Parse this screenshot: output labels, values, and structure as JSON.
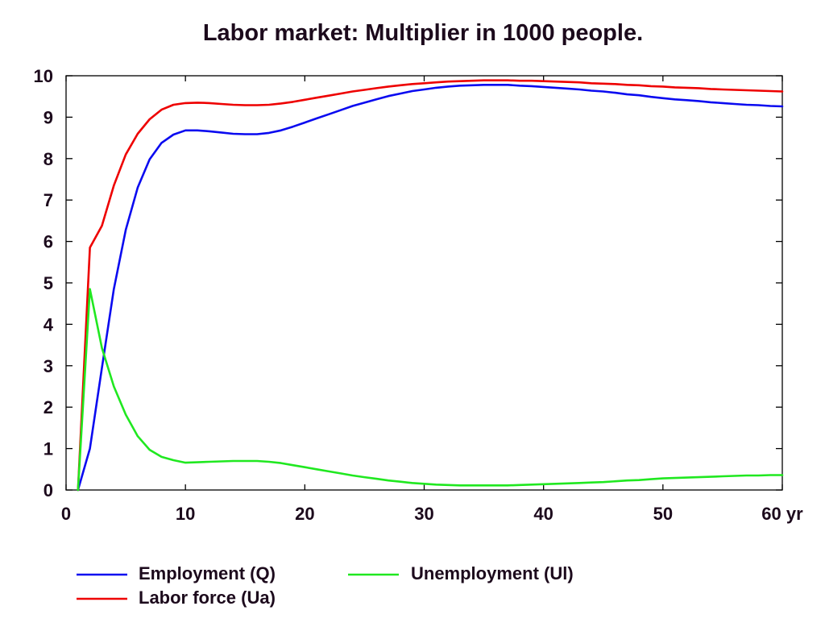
{
  "chart_data": {
    "type": "line",
    "title": "Labor market: Multiplier in 1000 people.",
    "xlabel": "",
    "ylabel": "",
    "xlim": [
      0,
      60
    ],
    "ylim": [
      0,
      10
    ],
    "xticks": [
      0,
      10,
      20,
      30,
      40,
      50,
      60
    ],
    "xtick_labels": [
      "0",
      "10",
      "20",
      "30",
      "40",
      "50",
      "60 yr"
    ],
    "yticks": [
      0,
      1,
      2,
      3,
      4,
      5,
      6,
      7,
      8,
      9,
      10
    ],
    "grid": false,
    "legend_position": "bottom",
    "x": [
      1,
      2,
      3,
      4,
      5,
      6,
      7,
      8,
      9,
      10,
      11,
      12,
      13,
      14,
      15,
      16,
      17,
      18,
      19,
      20,
      21,
      22,
      23,
      24,
      25,
      26,
      27,
      28,
      29,
      30,
      31,
      32,
      33,
      34,
      35,
      36,
      37,
      38,
      39,
      40,
      41,
      42,
      43,
      44,
      45,
      46,
      47,
      48,
      49,
      50,
      51,
      52,
      53,
      54,
      55,
      56,
      57,
      58,
      59,
      60
    ],
    "series": [
      {
        "name": "Employment (Q)",
        "color": "#0a0af0",
        "values": [
          0,
          1.0,
          2.95,
          4.85,
          6.28,
          7.3,
          7.98,
          8.38,
          8.58,
          8.68,
          8.68,
          8.66,
          8.63,
          8.6,
          8.59,
          8.59,
          8.62,
          8.68,
          8.77,
          8.87,
          8.97,
          9.07,
          9.17,
          9.27,
          9.35,
          9.43,
          9.51,
          9.57,
          9.63,
          9.67,
          9.71,
          9.74,
          9.76,
          9.77,
          9.78,
          9.78,
          9.78,
          9.76,
          9.75,
          9.73,
          9.71,
          9.69,
          9.67,
          9.64,
          9.62,
          9.59,
          9.55,
          9.53,
          9.49,
          9.46,
          9.43,
          9.41,
          9.39,
          9.36,
          9.34,
          9.32,
          9.3,
          9.29,
          9.27,
          9.26
        ]
      },
      {
        "name": "Labor force (Ua)",
        "color": "#ee0000",
        "values": [
          0,
          5.85,
          6.38,
          7.35,
          8.1,
          8.6,
          8.95,
          9.18,
          9.3,
          9.34,
          9.35,
          9.34,
          9.32,
          9.3,
          9.29,
          9.29,
          9.3,
          9.33,
          9.37,
          9.42,
          9.47,
          9.52,
          9.57,
          9.62,
          9.66,
          9.7,
          9.74,
          9.77,
          9.8,
          9.82,
          9.84,
          9.86,
          9.87,
          9.88,
          9.89,
          9.89,
          9.89,
          9.88,
          9.88,
          9.87,
          9.86,
          9.85,
          9.84,
          9.82,
          9.81,
          9.8,
          9.78,
          9.77,
          9.75,
          9.74,
          9.72,
          9.71,
          9.7,
          9.68,
          9.67,
          9.66,
          9.65,
          9.64,
          9.63,
          9.62
        ]
      },
      {
        "name": "Unemployment (Ul)",
        "color": "#20e820",
        "values": [
          0,
          4.85,
          3.43,
          2.5,
          1.82,
          1.3,
          0.97,
          0.8,
          0.72,
          0.66,
          0.67,
          0.68,
          0.69,
          0.7,
          0.7,
          0.7,
          0.68,
          0.65,
          0.6,
          0.55,
          0.5,
          0.45,
          0.4,
          0.35,
          0.31,
          0.27,
          0.23,
          0.2,
          0.17,
          0.15,
          0.13,
          0.12,
          0.11,
          0.11,
          0.11,
          0.11,
          0.11,
          0.12,
          0.13,
          0.14,
          0.15,
          0.16,
          0.17,
          0.18,
          0.19,
          0.21,
          0.23,
          0.24,
          0.26,
          0.28,
          0.29,
          0.3,
          0.31,
          0.32,
          0.33,
          0.34,
          0.35,
          0.35,
          0.36,
          0.36
        ]
      }
    ]
  }
}
